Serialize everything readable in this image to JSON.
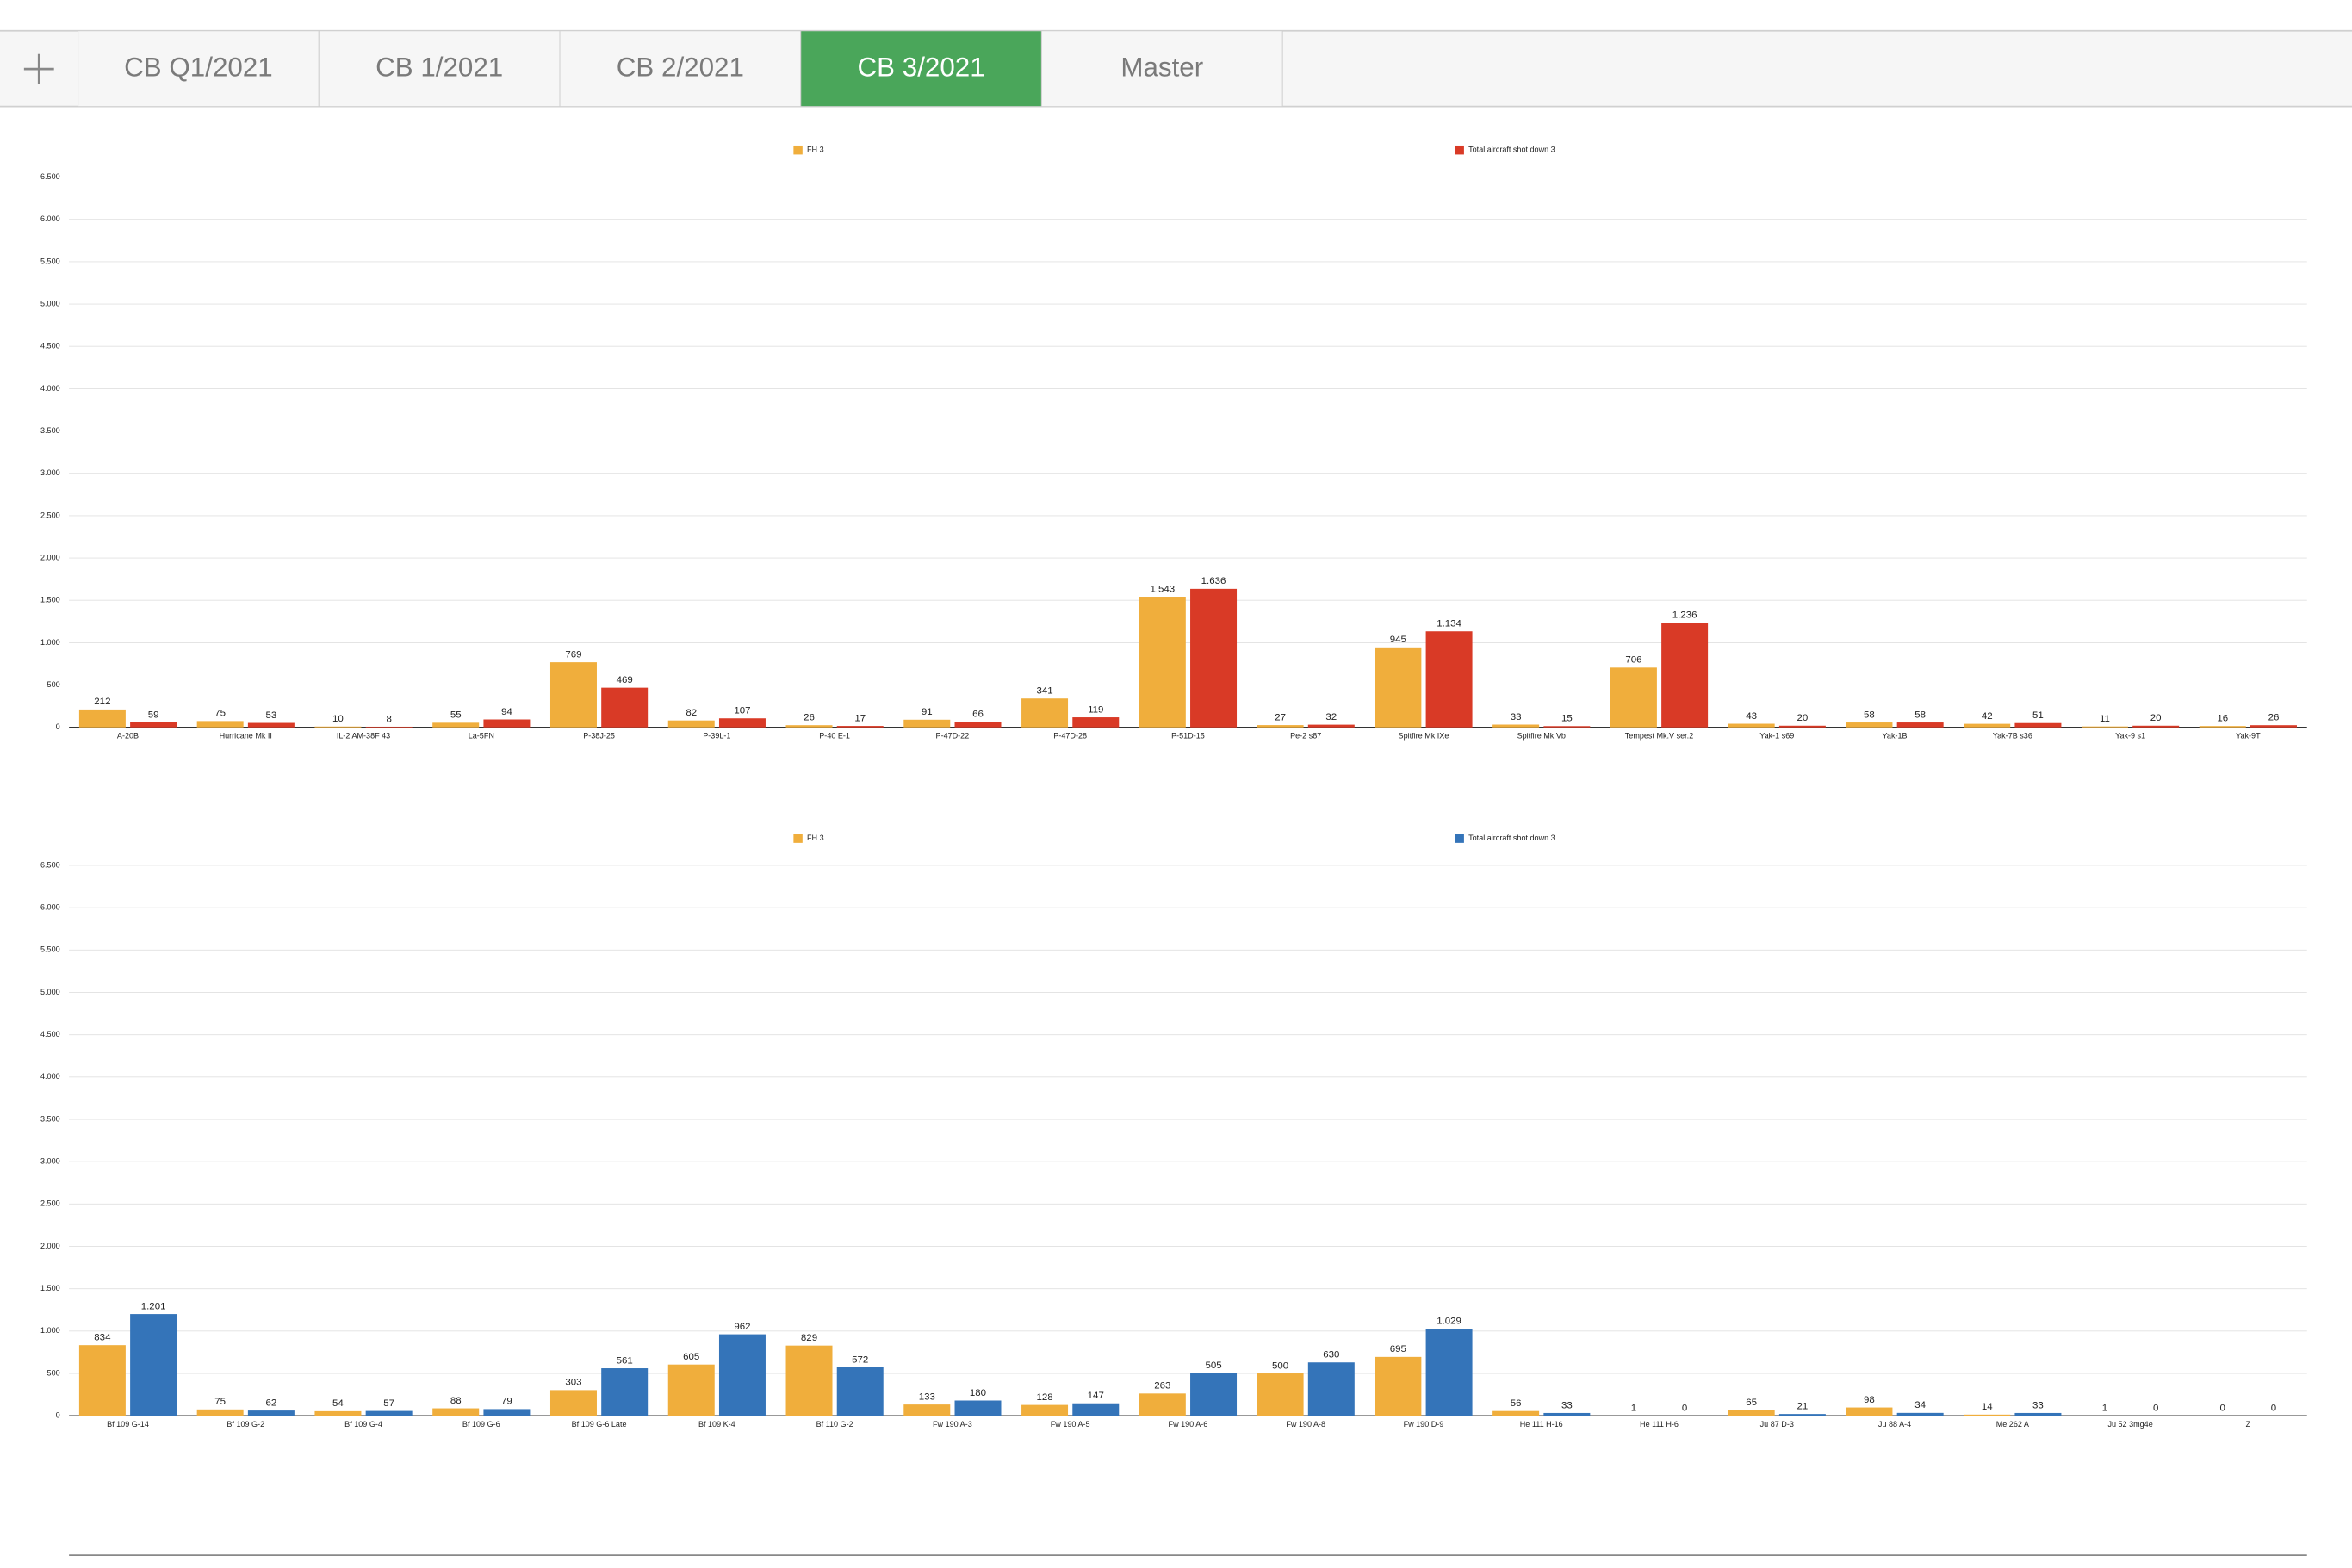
{
  "tabs": {
    "items": [
      "CB Q1/2021",
      "CB 1/2021",
      "CB 2/2021",
      "CB 3/2021",
      "Master"
    ],
    "active": 3
  },
  "chart_data": [
    {
      "type": "bar",
      "grid": true,
      "legend": "top",
      "categories": [
        "A-20B",
        "Hurricane Mk II",
        "IL-2 AM-38F 43",
        "La-5FN",
        "P-38J-25",
        "P-39L-1",
        "P-40 E-1",
        "P-47D-22",
        "P-47D-28",
        "P-51D-15",
        "Pe-2 s87",
        "Spitfire Mk IXe",
        "Spitfire Mk Vb",
        "Tempest Mk.V ser.2",
        "Yak-1 s69",
        "Yak-1B",
        "Yak-7B s36",
        "Yak-9 s1",
        "Yak-9T"
      ],
      "series": [
        {
          "name": "FH 3",
          "color": "#f0ae3c",
          "values": [
            212,
            75,
            10,
            55,
            769,
            82,
            26,
            91,
            341,
            1543,
            27,
            945,
            33,
            706,
            43,
            58,
            42,
            11,
            16
          ],
          "value_labels": [
            "212",
            "75",
            "10",
            "55",
            "769",
            "82",
            "26",
            "91",
            "341",
            "1.543",
            "27",
            "945",
            "33",
            "706",
            "43",
            "58",
            "42",
            "11",
            "16"
          ]
        },
        {
          "name": "Total aircraft shot down 3",
          "color": "#d93a26",
          "values": [
            59,
            53,
            8,
            94,
            469,
            107,
            17,
            66,
            119,
            1636,
            32,
            1134,
            15,
            1236,
            20,
            58,
            51,
            20,
            26
          ],
          "value_labels": [
            "59",
            "53",
            "8",
            "94",
            "469",
            "107",
            "17",
            "66",
            "119",
            "1.636",
            "32",
            "1.134",
            "15",
            "1.236",
            "20",
            "58",
            "51",
            "20",
            "26"
          ]
        }
      ],
      "ylim": [
        0,
        6500
      ],
      "yticks": [
        0,
        500,
        {
          "value": 1000,
          "label": "1.000"
        },
        {
          "value": 1500,
          "label": "1.500"
        },
        {
          "value": 2000,
          "label": "2.000"
        },
        {
          "value": 2500,
          "label": "2.500"
        },
        {
          "value": 3000,
          "label": "3.000"
        },
        {
          "value": 3500,
          "label": "3.500"
        },
        {
          "value": 4000,
          "label": "4.000"
        },
        {
          "value": 4500,
          "label": "4.500"
        },
        {
          "value": 5000,
          "label": "5.000"
        },
        {
          "value": 5500,
          "label": "5.500"
        },
        {
          "value": 6000,
          "label": "6.000"
        },
        {
          "value": 6500,
          "label": "6.500"
        }
      ]
    },
    {
      "type": "bar",
      "grid": true,
      "legend": "top",
      "categories": [
        "Bf 109 G-14",
        "Bf 109 G-2",
        "Bf 109 G-4",
        "Bf 109 G-6",
        "Bf 109 G-6 Late",
        "Bf 109 K-4",
        "Bf 110 G-2",
        "Fw 190 A-3",
        "Fw 190 A-5",
        "Fw 190 A-6",
        "Fw 190 A-8",
        "Fw 190 D-9",
        "He 111 H-16",
        "He 111 H-6",
        "Ju 87 D-3",
        "Ju 88 A-4",
        "Me 262 A",
        "Ju 52 3mg4e",
        "Z"
      ],
      "series": [
        {
          "name": "FH 3",
          "color": "#f0ae3c",
          "values": [
            834,
            75,
            54,
            88,
            303,
            605,
            829,
            133,
            128,
            263,
            500,
            695,
            56,
            1,
            65,
            98,
            14,
            1,
            0
          ],
          "value_labels": [
            "834",
            "75",
            "54",
            "88",
            "303",
            "605",
            "829",
            "133",
            "128",
            "263",
            "500",
            "695",
            "56",
            "1",
            "65",
            "98",
            "14",
            "1",
            "0"
          ]
        },
        {
          "name": "Total aircraft shot down 3",
          "color": "#3474b9",
          "values": [
            1201,
            62,
            57,
            79,
            561,
            962,
            572,
            180,
            147,
            505,
            630,
            1029,
            33,
            0,
            21,
            34,
            33,
            0,
            0
          ],
          "value_labels": [
            "1.201",
            "62",
            "57",
            "79",
            "561",
            "962",
            "572",
            "180",
            "147",
            "505",
            "630",
            "1.029",
            "33",
            "0",
            "21",
            "34",
            "33",
            "0",
            "0"
          ]
        }
      ],
      "ylim": [
        0,
        6500
      ],
      "yticks": [
        0,
        500,
        {
          "value": 1000,
          "label": "1.000"
        },
        {
          "value": 1500,
          "label": "1.500"
        },
        {
          "value": 2000,
          "label": "2.000"
        },
        {
          "value": 2500,
          "label": "2.500"
        },
        {
          "value": 3000,
          "label": "3.000"
        },
        {
          "value": 3500,
          "label": "3.500"
        },
        {
          "value": 4000,
          "label": "4.000"
        },
        {
          "value": 4500,
          "label": "4.500"
        },
        {
          "value": 5000,
          "label": "5.000"
        },
        {
          "value": 5500,
          "label": "5.500"
        },
        {
          "value": 6000,
          "label": "6.000"
        },
        {
          "value": 6500,
          "label": "6.500"
        }
      ]
    }
  ]
}
